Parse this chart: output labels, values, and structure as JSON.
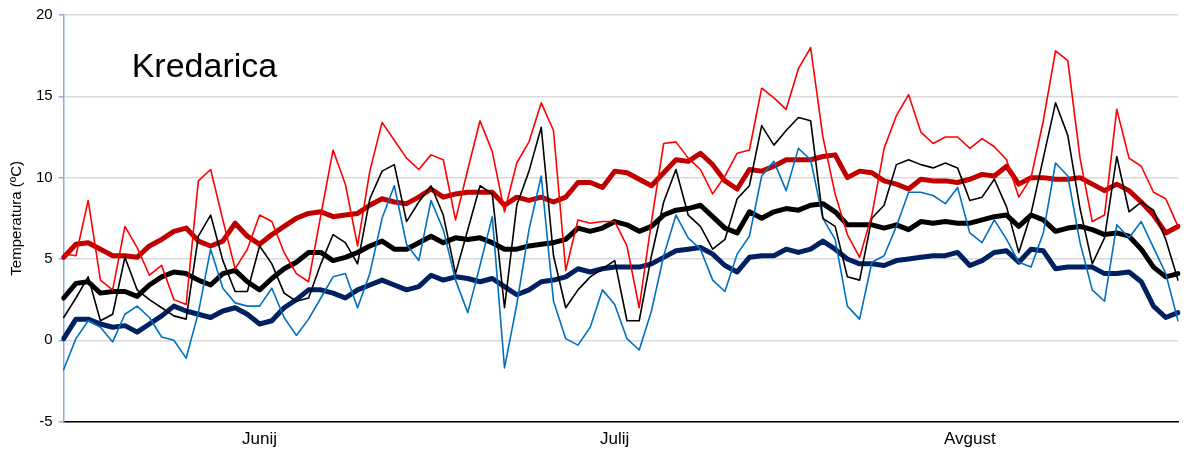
{
  "chart_data": {
    "type": "line",
    "title": "Kredarica",
    "ylabel": "Temperatura (ºC)",
    "categories": [
      null,
      null,
      null,
      null,
      null,
      null,
      null,
      null,
      null,
      null,
      null,
      null,
      null,
      null,
      null,
      null,
      "Junij",
      null,
      null,
      null,
      null,
      null,
      null,
      null,
      null,
      null,
      null,
      null,
      null,
      null,
      null,
      null,
      null,
      null,
      null,
      null,
      null,
      null,
      null,
      null,
      null,
      null,
      null,
      null,
      null,
      "Julij",
      null,
      null,
      null,
      null,
      null,
      null,
      null,
      null,
      null,
      null,
      null,
      null,
      null,
      null,
      null,
      null,
      null,
      null,
      null,
      null,
      null,
      null,
      null,
      null,
      null,
      null,
      null,
      null,
      "Avgust",
      null,
      null,
      null,
      null,
      null,
      null,
      null,
      null,
      null,
      null,
      null,
      null,
      null,
      null,
      null,
      null,
      null
    ],
    "series": [
      {
        "color": "#ff0000",
        "values": [
          5.3,
          5.2,
          8.6,
          3.7,
          3.1,
          7.0,
          5.7,
          4.0,
          4.6,
          2.5,
          2.2,
          9.8,
          10.5,
          7.4,
          4.4,
          5.6,
          7.7,
          7.3,
          5.4,
          4.1,
          3.6,
          7.7,
          11.7,
          9.6,
          5.8,
          10.4,
          13.4,
          12.3,
          11.2,
          10.5,
          11.4,
          11.1,
          7.4,
          10.5,
          13.5,
          11.6,
          7.9,
          10.9,
          12.2,
          14.6,
          12.9,
          4.3,
          7.4,
          7.2,
          7.3,
          7.3,
          5.8,
          2.0,
          7.3,
          12.1,
          12.2,
          11.2,
          10.5,
          9.0,
          10.1,
          11.5,
          11.7,
          15.5,
          14.9,
          14.2,
          16.7,
          18.0,
          12.5,
          9.0,
          6.5,
          5.1,
          7.7,
          11.8,
          13.8,
          15.1,
          12.8,
          12.1,
          12.5,
          12.5,
          11.8,
          12.4,
          11.9,
          11.1,
          8.8,
          10.0,
          13.5,
          17.8,
          17.2,
          11.2,
          7.3,
          7.7,
          14.2,
          11.2,
          10.7,
          9.1,
          8.7,
          7.0
        ]
      },
      {
        "color": "#000000",
        "values": [
          1.4,
          2.6,
          3.9,
          1.2,
          1.6,
          5.1,
          3.1,
          2.5,
          2.0,
          1.5,
          1.3,
          6.4,
          7.7,
          4.9,
          3.0,
          3.0,
          5.8,
          4.7,
          2.9,
          2.4,
          2.6,
          4.7,
          6.5,
          6.0,
          4.7,
          8.7,
          10.4,
          10.8,
          7.3,
          8.5,
          9.5,
          7.7,
          4.1,
          6.8,
          9.5,
          9.0,
          2.0,
          8.3,
          10.4,
          13.1,
          5.2,
          2.0,
          3.1,
          3.9,
          4.4,
          4.9,
          1.2,
          1.2,
          5.2,
          8.5,
          10.5,
          7.7,
          7.0,
          5.6,
          6.2,
          8.7,
          9.5,
          13.2,
          12.0,
          12.9,
          13.7,
          13.5,
          7.5,
          7.0,
          3.9,
          3.7,
          7.5,
          8.3,
          10.8,
          11.1,
          10.8,
          10.6,
          10.9,
          10.6,
          8.6,
          8.8,
          9.9,
          8.2,
          5.4,
          7.8,
          11.2,
          14.6,
          12.6,
          8.1,
          4.7,
          6.3,
          11.3,
          7.9,
          8.5,
          8.0,
          6.2,
          3.7
        ]
      },
      {
        "color": "#0070c0",
        "values": [
          -1.8,
          0.1,
          1.2,
          0.8,
          -0.1,
          1.6,
          2.1,
          1.4,
          0.2,
          0.0,
          -1.1,
          1.7,
          5.6,
          3.2,
          2.3,
          2.1,
          2.1,
          3.2,
          1.4,
          0.3,
          1.3,
          2.6,
          3.9,
          4.1,
          2.0,
          4.1,
          7.5,
          9.5,
          5.9,
          4.9,
          8.6,
          6.8,
          3.7,
          1.7,
          4.6,
          7.6,
          -1.7,
          2.2,
          6.8,
          10.1,
          2.4,
          0.1,
          -0.3,
          0.8,
          3.1,
          2.2,
          0.1,
          -0.6,
          1.8,
          5.2,
          7.7,
          6.3,
          5.6,
          3.7,
          3.0,
          5.3,
          6.4,
          10.1,
          11.0,
          9.2,
          11.8,
          11.1,
          7.5,
          6.2,
          2.1,
          1.3,
          4.8,
          5.2,
          7.0,
          9.1,
          9.1,
          8.9,
          8.4,
          9.4,
          6.6,
          6.0,
          7.4,
          6.2,
          4.8,
          4.5,
          6.6,
          10.9,
          10.1,
          6.0,
          3.1,
          2.4,
          7.1,
          6.3,
          7.3,
          5.7,
          4.1,
          1.2
        ]
      },
      {
        "color": "#c00000",
        "values": [
          5.1,
          5.9,
          6.0,
          5.6,
          5.2,
          5.2,
          5.1,
          5.8,
          6.2,
          6.7,
          6.9,
          6.1,
          5.8,
          6.1,
          7.2,
          6.4,
          5.9,
          6.5,
          7.0,
          7.5,
          7.8,
          7.9,
          7.6,
          7.7,
          7.8,
          8.3,
          8.7,
          8.5,
          8.4,
          8.8,
          9.3,
          8.8,
          9.0,
          9.1,
          9.1,
          9.1,
          8.3,
          8.8,
          8.6,
          8.8,
          8.5,
          8.8,
          9.7,
          9.7,
          9.4,
          10.4,
          10.3,
          9.9,
          9.5,
          10.3,
          11.1,
          11.0,
          11.5,
          10.8,
          9.8,
          9.3,
          10.5,
          10.4,
          10.7,
          11.1,
          11.1,
          11.1,
          11.3,
          11.4,
          10.0,
          10.4,
          10.3,
          9.8,
          9.6,
          9.3,
          9.9,
          9.8,
          9.8,
          9.7,
          9.9,
          10.2,
          10.1,
          10.7,
          9.6,
          10.0,
          10.0,
          9.9,
          9.9,
          10.0,
          9.6,
          9.2,
          9.6,
          9.2,
          8.5,
          7.7,
          6.6,
          7.0
        ]
      },
      {
        "color": "#000000",
        "values": [
          2.6,
          3.5,
          3.6,
          2.9,
          3.0,
          3.0,
          2.7,
          3.4,
          3.9,
          4.2,
          4.1,
          3.7,
          3.4,
          4.1,
          4.3,
          3.6,
          3.1,
          3.8,
          4.4,
          4.8,
          5.4,
          5.4,
          4.9,
          5.1,
          5.4,
          5.8,
          6.1,
          5.6,
          5.6,
          6.0,
          6.4,
          6.0,
          6.3,
          6.2,
          6.3,
          6.0,
          5.6,
          5.6,
          5.8,
          5.9,
          6.0,
          6.2,
          6.9,
          6.7,
          6.9,
          7.3,
          7.1,
          6.7,
          7.0,
          7.7,
          8.0,
          8.1,
          8.3,
          7.6,
          6.9,
          6.6,
          7.9,
          7.5,
          7.9,
          8.1,
          8.0,
          8.3,
          8.4,
          7.9,
          7.1,
          7.1,
          7.1,
          6.9,
          7.1,
          6.8,
          7.3,
          7.2,
          7.3,
          7.2,
          7.2,
          7.4,
          7.6,
          7.7,
          7.0,
          7.7,
          7.4,
          6.7,
          6.9,
          7.0,
          6.8,
          6.5,
          6.6,
          6.4,
          5.6,
          4.5,
          3.9,
          4.1
        ]
      },
      {
        "color": "#002060",
        "values": [
          0.1,
          1.3,
          1.3,
          1.0,
          0.8,
          0.9,
          0.5,
          1.0,
          1.5,
          2.1,
          1.8,
          1.6,
          1.4,
          1.8,
          2.0,
          1.6,
          1.0,
          1.2,
          2.0,
          2.5,
          3.1,
          3.1,
          2.9,
          2.6,
          3.1,
          3.4,
          3.7,
          3.4,
          3.1,
          3.3,
          4.0,
          3.7,
          3.9,
          3.8,
          3.6,
          3.8,
          3.3,
          2.8,
          3.1,
          3.6,
          3.7,
          3.9,
          4.4,
          4.2,
          4.4,
          4.5,
          4.5,
          4.5,
          4.7,
          5.1,
          5.5,
          5.6,
          5.7,
          5.3,
          4.6,
          4.2,
          5.1,
          5.2,
          5.2,
          5.6,
          5.4,
          5.6,
          6.1,
          5.6,
          5.0,
          4.7,
          4.7,
          4.6,
          4.9,
          5.0,
          5.1,
          5.2,
          5.2,
          5.4,
          4.6,
          4.9,
          5.4,
          5.5,
          4.8,
          5.6,
          5.5,
          4.4,
          4.5,
          4.5,
          4.5,
          4.1,
          4.1,
          4.2,
          3.6,
          2.1,
          1.4,
          1.7
        ]
      }
    ],
    "ylim": [
      -5,
      20
    ],
    "yticks": [
      -5,
      0,
      5,
      10,
      15,
      20
    ],
    "grid": "y",
    "legend": false,
    "marker": "none",
    "line_style": "solid"
  }
}
